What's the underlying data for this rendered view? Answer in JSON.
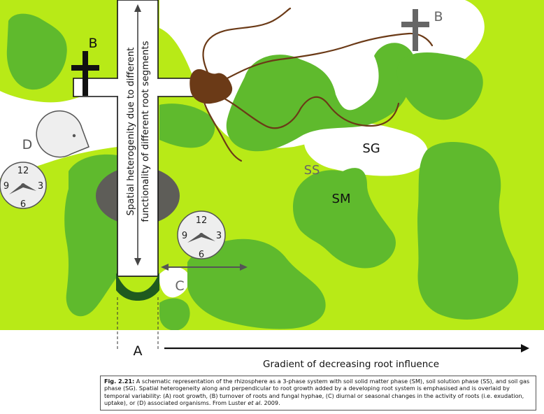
{
  "labels": {
    "root_growth": "A",
    "turnover": "B",
    "diurnal_changes": "C",
    "associated_organisms": "D",
    "solution_phase": "SS",
    "solid_matter_phase": "SM",
    "gas_phase": "SG",
    "heterogeneity_line1": "Spatial heterogenity due to different",
    "heterogeneity_line2": "functionality of different root segments",
    "gradient": "Gradient of decreasing root influence"
  },
  "clock": {
    "n12": "12",
    "n3": "3",
    "n6": "6",
    "n9": "9"
  },
  "caption": {
    "figure_label": "Fig. 2.21:",
    "text_part1": " A schematic representation of the rhizosphere as a 3-phase system with soil solid matter phase (SM), soil solution phase (SS), and soil gas phase (SG). Spatial heterogeneity along and perpendicular to root growth added by a developing root system is emphasised and is overlaid by temporal variability: (A) root growth, (B) turnover of roots and fungal hyphae, (C) diurnal or seasonal changes in the activity of roots (i.e. exudation, uptake), or (D) associated organisms. From Luster ",
    "etal": "et al.",
    "text_part2": " 2009."
  },
  "colors": {
    "solution_phase": "#b8ea17",
    "solid_matter_phase": "#5fba2d",
    "root_tip": "#1f5a1f",
    "gas_phase": "#ffffff",
    "organism": "#5e5d58",
    "fungus": "#6b3a17",
    "cross": "#111111",
    "grey_cross": "#666666",
    "clock_face": "#eeeeee"
  }
}
